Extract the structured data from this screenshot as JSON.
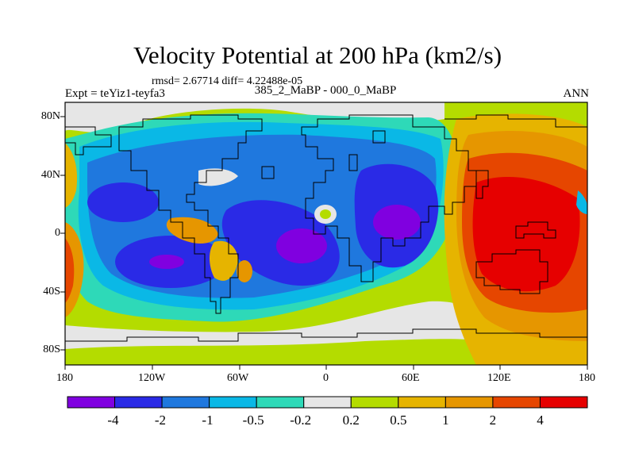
{
  "title": "Velocity Potential at 200 hPa (km2/s)",
  "stats": "rmsd= 2.67714 diff= 4.22488e-05",
  "subtitle": "385_2_MaBP - 000_0_MaBP",
  "experiment": "Expt = teYiz1-teyfa3",
  "season": "ANN",
  "x_ticks": [
    "180",
    "120W",
    "60W",
    "0",
    "60E",
    "120E",
    "180"
  ],
  "y_ticks": [
    "80N",
    "40N",
    "0",
    "40S",
    "80S"
  ],
  "colorbar": {
    "labels": [
      "-4",
      "-2",
      "-1",
      "-0.5",
      "-0.2",
      "0.2",
      "0.5",
      "1",
      "2",
      "4"
    ],
    "colors": [
      "#8000e0",
      "#2a2ae6",
      "#1f78de",
      "#0ab8e6",
      "#2ed9b8",
      "#e6e6e6",
      "#b4dc00",
      "#e6b400",
      "#e69600",
      "#e64600",
      "#e60000"
    ]
  }
}
